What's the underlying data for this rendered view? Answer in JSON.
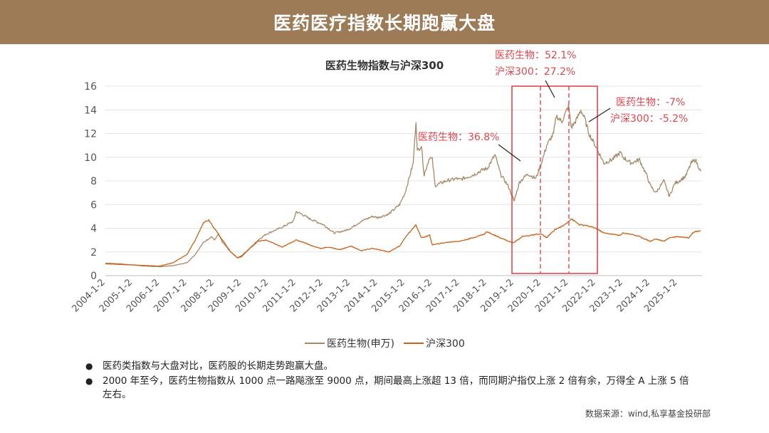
{
  "page": {
    "title": "医药医疗指数长期跑赢大盘"
  },
  "chart_data": {
    "type": "line",
    "title": "医药生物指数与沪深300",
    "x_labels": [
      "2004-1-2",
      "2005-1-2",
      "2006-1-2",
      "2007-1-2",
      "2008-1-2",
      "2009-1-2",
      "2010-1-2",
      "2011-1-2",
      "2012-1-2",
      "2013-1-2",
      "2014-1-2",
      "2015-1-2",
      "2016-1-2",
      "2017-1-2",
      "2018-1-2",
      "2019-1-2",
      "2020-1-2",
      "2021-1-2",
      "2022-1-2",
      "2023-1-2",
      "2024-1-2",
      "2025-1-2"
    ],
    "ylim": [
      0,
      16
    ],
    "y_ticks": [
      "0",
      "2",
      "4",
      "6",
      "8",
      "10",
      "12",
      "14",
      "16"
    ],
    "grid": true,
    "legend_position": "bottom",
    "series": [
      {
        "name": "医药生物(申万)",
        "color": "#a58866",
        "points": [
          [
            2004.0,
            1.05
          ],
          [
            2004.5,
            1.0
          ],
          [
            2005.0,
            0.9
          ],
          [
            2005.5,
            0.8
          ],
          [
            2006.0,
            0.75
          ],
          [
            2006.5,
            0.85
          ],
          [
            2007.0,
            1.1
          ],
          [
            2007.3,
            1.8
          ],
          [
            2007.6,
            2.8
          ],
          [
            2007.9,
            3.3
          ],
          [
            2008.0,
            3.0
          ],
          [
            2008.15,
            3.5
          ],
          [
            2008.3,
            2.8
          ],
          [
            2008.6,
            2.0
          ],
          [
            2008.85,
            1.5
          ],
          [
            2009.0,
            1.7
          ],
          [
            2009.3,
            2.3
          ],
          [
            2009.6,
            3.0
          ],
          [
            2009.9,
            3.5
          ],
          [
            2010.2,
            3.8
          ],
          [
            2010.5,
            4.1
          ],
          [
            2010.9,
            4.6
          ],
          [
            2011.0,
            5.4
          ],
          [
            2011.2,
            5.2
          ],
          [
            2011.5,
            4.8
          ],
          [
            2011.8,
            4.5
          ],
          [
            2012.0,
            4.3
          ],
          [
            2012.4,
            3.6
          ],
          [
            2012.8,
            3.8
          ],
          [
            2013.0,
            4.0
          ],
          [
            2013.4,
            4.6
          ],
          [
            2013.8,
            5.0
          ],
          [
            2014.0,
            4.9
          ],
          [
            2014.4,
            5.2
          ],
          [
            2014.8,
            6.0
          ],
          [
            2015.0,
            7.0
          ],
          [
            2015.3,
            9.5
          ],
          [
            2015.4,
            13.1
          ],
          [
            2015.45,
            10.5
          ],
          [
            2015.6,
            11.0
          ],
          [
            2015.7,
            8.5
          ],
          [
            2015.9,
            10.0
          ],
          [
            2016.0,
            9.8
          ],
          [
            2016.1,
            7.6
          ],
          [
            2016.5,
            8.0
          ],
          [
            2016.9,
            8.2
          ],
          [
            2017.0,
            8.1
          ],
          [
            2017.5,
            8.5
          ],
          [
            2017.9,
            9.0
          ],
          [
            2018.0,
            9.0
          ],
          [
            2018.3,
            10.2
          ],
          [
            2018.5,
            8.6
          ],
          [
            2018.8,
            7.5
          ],
          [
            2019.0,
            6.3
          ],
          [
            2019.2,
            7.9
          ],
          [
            2019.5,
            8.6
          ],
          [
            2019.8,
            8.2
          ],
          [
            2020.0,
            9.5
          ],
          [
            2020.2,
            11.0
          ],
          [
            2020.45,
            12.0
          ],
          [
            2020.55,
            13.5
          ],
          [
            2020.75,
            13.0
          ],
          [
            2021.0,
            14.3
          ],
          [
            2021.1,
            12.5
          ],
          [
            2021.3,
            13.2
          ],
          [
            2021.45,
            14.0
          ],
          [
            2021.6,
            13.2
          ],
          [
            2021.75,
            12.0
          ],
          [
            2022.0,
            10.9
          ],
          [
            2022.3,
            9.5
          ],
          [
            2022.6,
            9.8
          ],
          [
            2022.9,
            10.4
          ],
          [
            2023.0,
            10.0
          ],
          [
            2023.3,
            9.5
          ],
          [
            2023.6,
            9.8
          ],
          [
            2023.9,
            8.3
          ],
          [
            2024.0,
            7.6
          ],
          [
            2024.2,
            7.0
          ],
          [
            2024.5,
            8.0
          ],
          [
            2024.7,
            6.7
          ],
          [
            2024.9,
            7.8
          ],
          [
            2025.0,
            7.9
          ],
          [
            2025.3,
            8.4
          ],
          [
            2025.5,
            9.5
          ],
          [
            2025.65,
            9.8
          ],
          [
            2025.85,
            8.8
          ]
        ]
      },
      {
        "name": "沪深300",
        "color": "#c4621a",
        "points": [
          [
            2004.0,
            1.0
          ],
          [
            2004.5,
            0.95
          ],
          [
            2005.0,
            0.9
          ],
          [
            2005.5,
            0.85
          ],
          [
            2006.0,
            0.8
          ],
          [
            2006.5,
            1.1
          ],
          [
            2007.0,
            1.8
          ],
          [
            2007.3,
            3.0
          ],
          [
            2007.6,
            4.5
          ],
          [
            2007.8,
            4.7
          ],
          [
            2008.0,
            4.0
          ],
          [
            2008.3,
            3.0
          ],
          [
            2008.6,
            2.0
          ],
          [
            2008.85,
            1.5
          ],
          [
            2009.0,
            1.6
          ],
          [
            2009.3,
            2.3
          ],
          [
            2009.6,
            2.9
          ],
          [
            2009.9,
            3.0
          ],
          [
            2010.2,
            2.7
          ],
          [
            2010.5,
            2.4
          ],
          [
            2010.9,
            2.9
          ],
          [
            2011.0,
            3.0
          ],
          [
            2011.3,
            2.8
          ],
          [
            2011.6,
            2.5
          ],
          [
            2011.9,
            2.3
          ],
          [
            2012.2,
            2.4
          ],
          [
            2012.6,
            2.2
          ],
          [
            2012.9,
            2.4
          ],
          [
            2013.0,
            2.5
          ],
          [
            2013.4,
            2.1
          ],
          [
            2013.8,
            2.3
          ],
          [
            2014.0,
            2.2
          ],
          [
            2014.4,
            2.0
          ],
          [
            2014.8,
            2.5
          ],
          [
            2015.0,
            3.2
          ],
          [
            2015.4,
            4.3
          ],
          [
            2015.5,
            3.7
          ],
          [
            2015.6,
            3.2
          ],
          [
            2015.9,
            3.4
          ],
          [
            2016.0,
            2.6
          ],
          [
            2016.5,
            2.8
          ],
          [
            2016.9,
            2.9
          ],
          [
            2017.0,
            2.9
          ],
          [
            2017.5,
            3.2
          ],
          [
            2017.9,
            3.5
          ],
          [
            2018.0,
            3.7
          ],
          [
            2018.3,
            3.4
          ],
          [
            2018.6,
            3.1
          ],
          [
            2018.9,
            2.8
          ],
          [
            2019.0,
            2.8
          ],
          [
            2019.3,
            3.3
          ],
          [
            2019.6,
            3.4
          ],
          [
            2019.9,
            3.5
          ],
          [
            2020.0,
            3.5
          ],
          [
            2020.2,
            3.2
          ],
          [
            2020.5,
            3.9
          ],
          [
            2020.8,
            4.2
          ],
          [
            2021.0,
            4.6
          ],
          [
            2021.1,
            4.8
          ],
          [
            2021.4,
            4.3
          ],
          [
            2021.7,
            4.2
          ],
          [
            2022.0,
            4.0
          ],
          [
            2022.3,
            3.6
          ],
          [
            2022.6,
            3.5
          ],
          [
            2022.9,
            3.4
          ],
          [
            2023.0,
            3.6
          ],
          [
            2023.3,
            3.5
          ],
          [
            2023.6,
            3.3
          ],
          [
            2023.9,
            3.0
          ],
          [
            2024.0,
            2.9
          ],
          [
            2024.2,
            3.1
          ],
          [
            2024.5,
            2.9
          ],
          [
            2024.7,
            3.2
          ],
          [
            2025.0,
            3.3
          ],
          [
            2025.4,
            3.2
          ],
          [
            2025.6,
            3.7
          ],
          [
            2025.85,
            3.8
          ]
        ]
      }
    ],
    "annotations": {
      "label_a": "医药生物：36.8%",
      "label_b1": "医药生物：52.1%",
      "label_b2": "沪深300：27.2%",
      "label_c1": "医药生物：-7%",
      "label_c2": "沪深300：-5.2%",
      "color": "#e0454f"
    }
  },
  "bullets": [
    "医药类指数与大盘对比，医药股的长期走势跑赢大盘。",
    "2000 年至今，医药生物指数从 1000 点一路飚涨至 9000 点，期间最高上涨超 13 倍，而同期沪指仅上涨 2 倍有余，万得全 A 上涨 5 倍左右。"
  ],
  "source": "数据来源：wind,私享基金投研部"
}
